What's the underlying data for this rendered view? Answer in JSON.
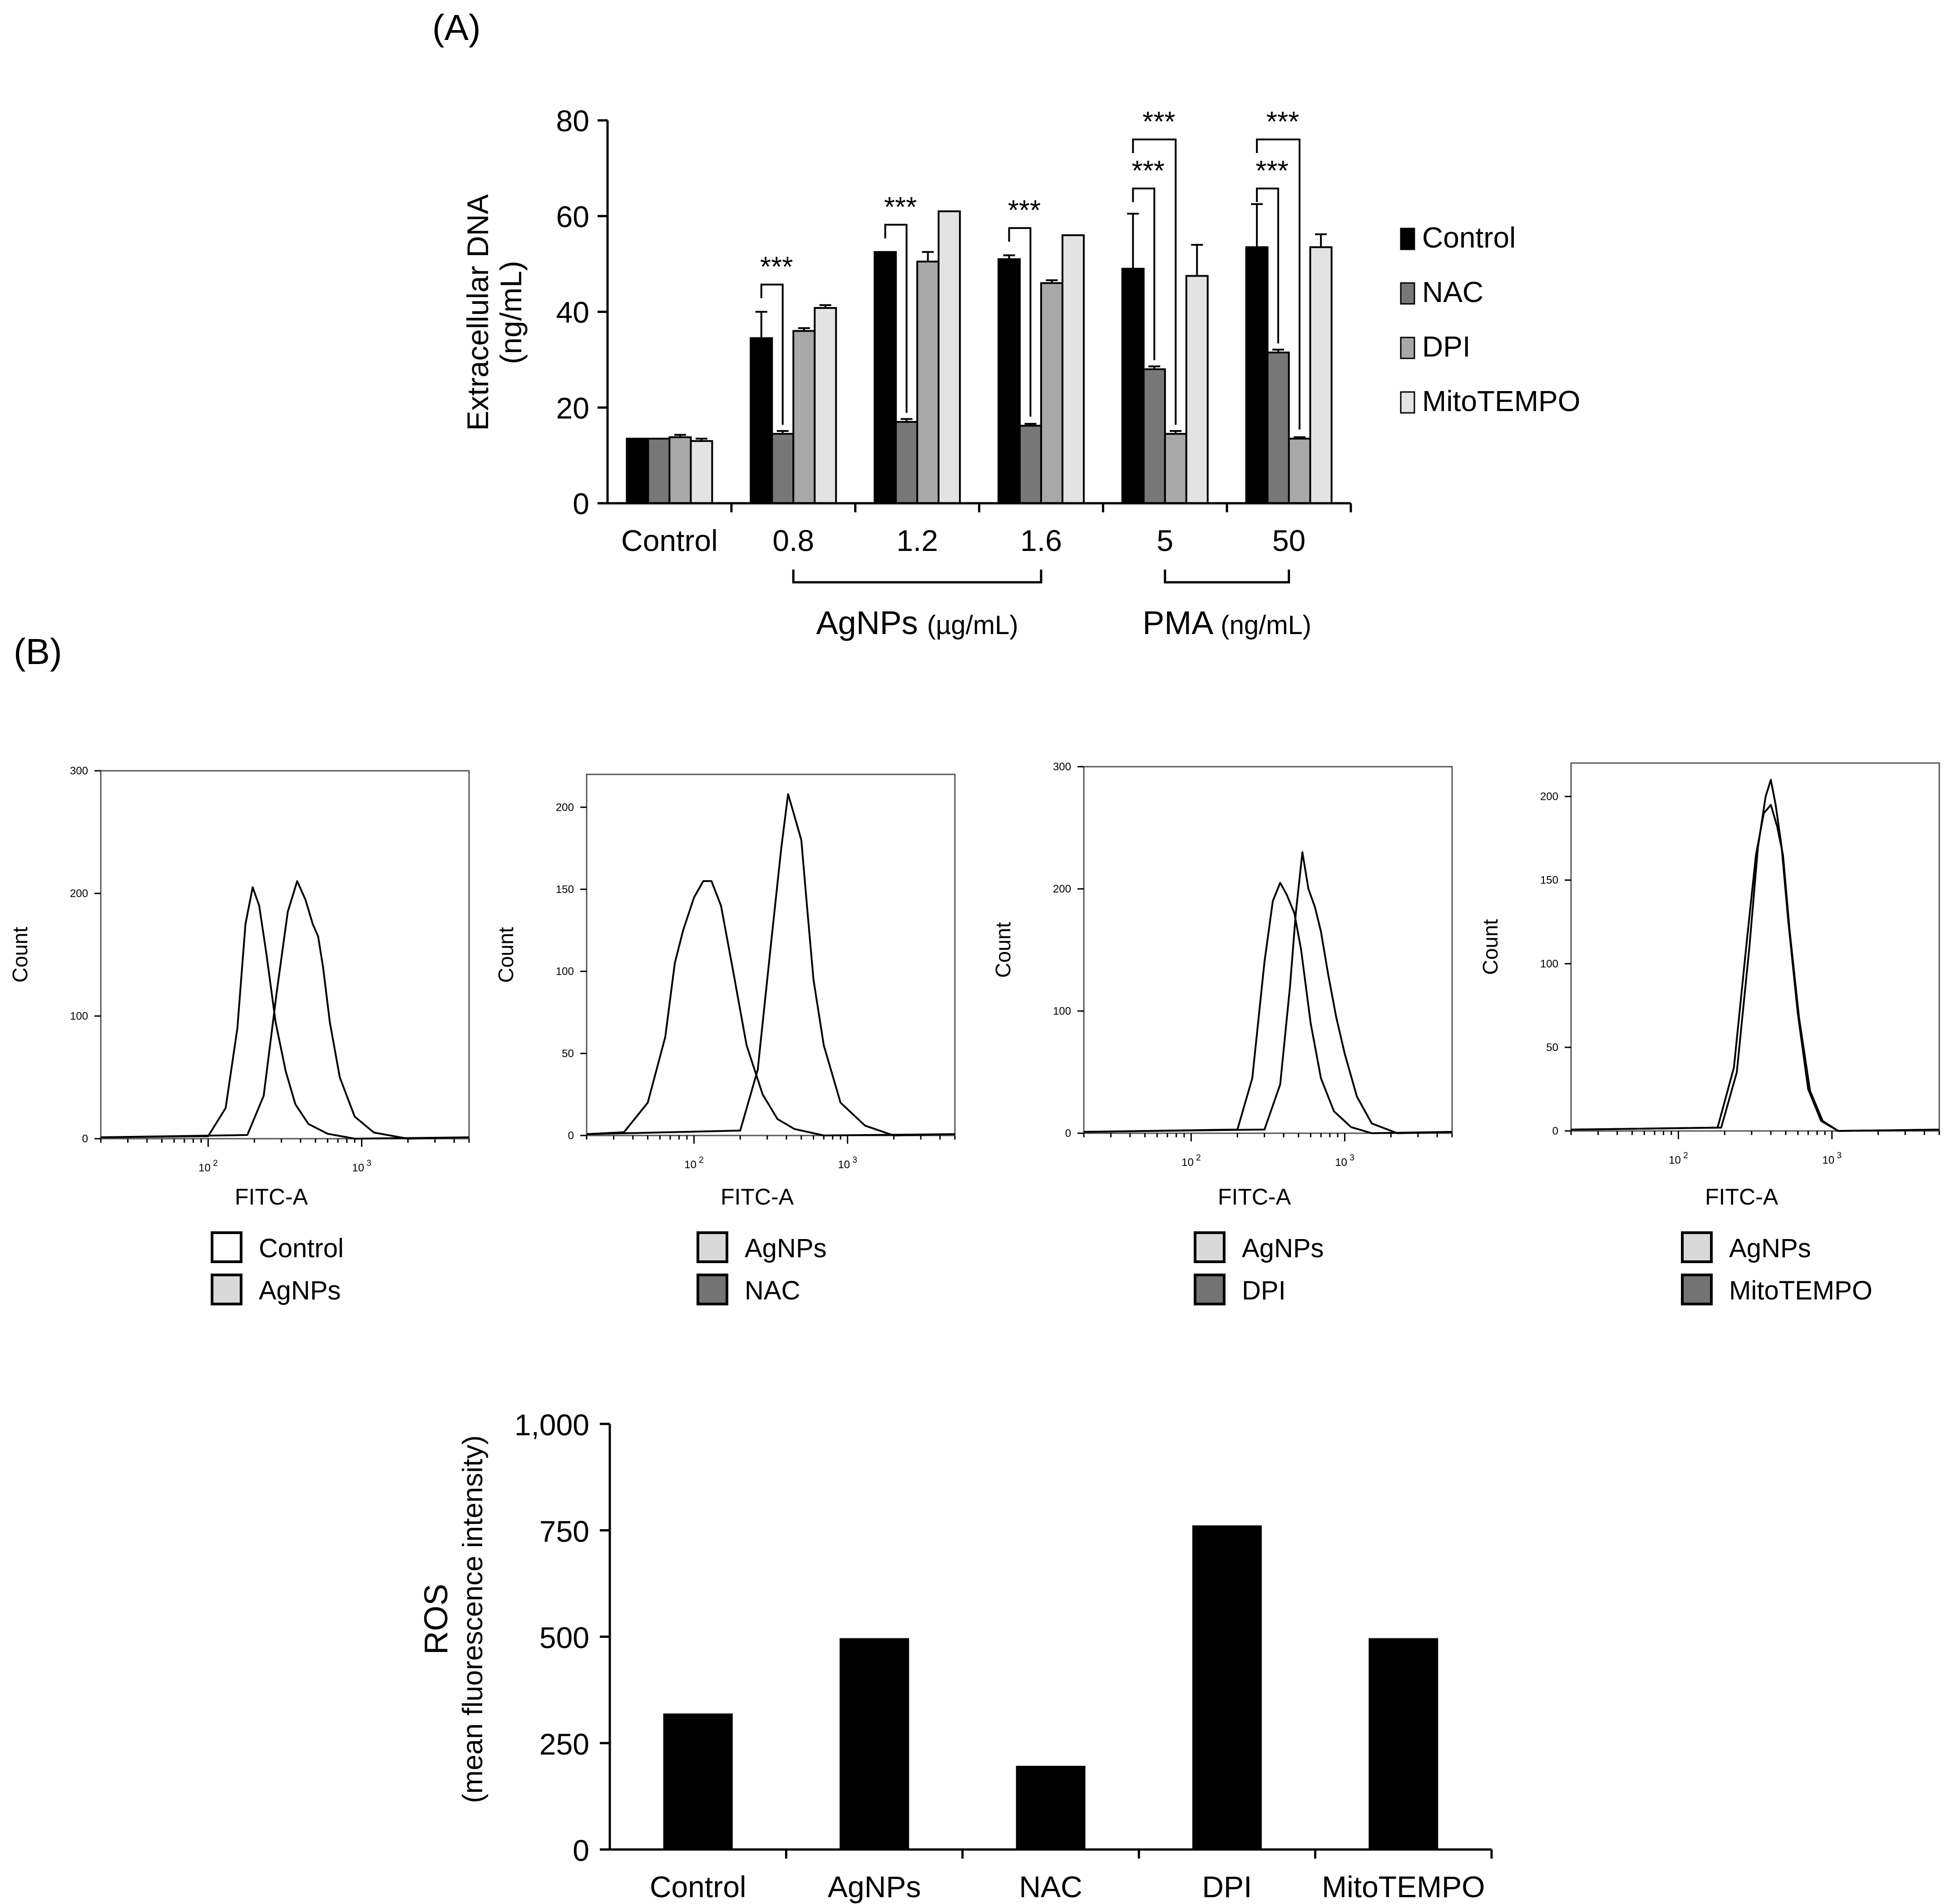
{
  "panel_labels": {
    "a": "(A)",
    "b": "(B)"
  },
  "colors": {
    "control": "#000000",
    "nac": "#777777",
    "dpi": "#a8a8a8",
    "mitotempo": "#e3e3e3",
    "legend_white": "#ffffff",
    "legend_light": "#d9d9d9",
    "legend_dark": "#737373",
    "axis": "#000000"
  },
  "chart_data": [
    {
      "id": "extracellular-dna",
      "type": "bar",
      "title": "",
      "ylabel_line1": "Extracellular DNA",
      "ylabel_line2": "(ng/mL)",
      "ylim": [
        0,
        80
      ],
      "yticks": [
        0,
        20,
        40,
        60,
        80
      ],
      "categories": [
        "Control",
        "0.8",
        "1.2",
        "1.6",
        "5",
        "50"
      ],
      "groups": [
        {
          "label": "AgNPs",
          "unit": "(µg/mL)",
          "from": 1,
          "to": 3
        },
        {
          "label": "PMA",
          "unit": "(ng/mL)",
          "from": 4,
          "to": 5
        }
      ],
      "legend": [
        "Control",
        "NAC",
        "DPI",
        "MitoTEMPO"
      ],
      "series": [
        {
          "name": "Control",
          "values": [
            13.5,
            34.5,
            52.5,
            51,
            49,
            53.5
          ],
          "errors": [
            0,
            5.5,
            0,
            0.8,
            11.5,
            9
          ]
        },
        {
          "name": "NAC",
          "values": [
            13.5,
            14.5,
            17,
            16.2,
            28,
            31.5
          ],
          "errors": [
            0,
            0.6,
            0.6,
            0.4,
            0.6,
            0.6
          ]
        },
        {
          "name": "DPI",
          "values": [
            13.8,
            36,
            50.5,
            46,
            14.5,
            13.5
          ],
          "errors": [
            0.5,
            0.6,
            2,
            0.6,
            0.6,
            0.3
          ]
        },
        {
          "name": "MitoTEMPO",
          "values": [
            13,
            40.8,
            61,
            56,
            47.5,
            53.5
          ],
          "errors": [
            0.5,
            0.6,
            0,
            0,
            6.5,
            2.7
          ]
        }
      ],
      "significance": [
        {
          "category": 1,
          "from_series": 0,
          "to_series": 1,
          "label": "***",
          "level": 0
        },
        {
          "category": 2,
          "from_series": 0,
          "to_series": 1,
          "label": "***",
          "level": 0
        },
        {
          "category": 3,
          "from_series": 0,
          "to_series": 1,
          "label": "***",
          "level": 0
        },
        {
          "category": 4,
          "from_series": 0,
          "to_series": 1,
          "label": "***",
          "level": 0
        },
        {
          "category": 4,
          "from_series": 0,
          "to_series": 2,
          "label": "***",
          "level": 1
        },
        {
          "category": 5,
          "from_series": 0,
          "to_series": 1,
          "label": "***",
          "level": 0
        },
        {
          "category": 5,
          "from_series": 0,
          "to_series": 2,
          "label": "***",
          "level": 1
        }
      ]
    },
    {
      "id": "histogram-1",
      "type": "line",
      "xlabel": "FITC-A",
      "ylabel": "Count",
      "xscale": "log",
      "xlim": [
        20,
        5000
      ],
      "ylim": [
        0,
        300
      ],
      "yticks": [
        0,
        100,
        200,
        300
      ],
      "xtick_labels": [
        "10^2",
        "10^3"
      ],
      "legend": [
        "Control",
        "AgNPs"
      ],
      "series": [
        {
          "name": "Control",
          "x": [
            100,
            130,
            155,
            175,
            195,
            215,
            240,
            275,
            320,
            370,
            450,
            600,
            900
          ],
          "y": [
            2,
            25,
            90,
            175,
            205,
            190,
            150,
            95,
            55,
            28,
            12,
            4,
            0
          ]
        },
        {
          "name": "AgNPs",
          "x": [
            180,
            230,
            280,
            330,
            380,
            430,
            480,
            520,
            560,
            620,
            720,
            900,
            1200,
            2000
          ],
          "y": [
            3,
            35,
            120,
            185,
            210,
            195,
            175,
            165,
            140,
            95,
            50,
            18,
            5,
            0
          ]
        }
      ]
    },
    {
      "id": "histogram-2",
      "type": "line",
      "xlabel": "FITC-A",
      "ylabel": "Count",
      "xscale": "log",
      "xlim": [
        20,
        5000
      ],
      "ylim": [
        0,
        220
      ],
      "yticks": [
        0,
        50,
        100,
        150,
        200
      ],
      "xtick_labels": [
        "10^2",
        "10^3"
      ],
      "legend": [
        "AgNPs",
        "NAC"
      ],
      "series": [
        {
          "name": "AgNPs",
          "x": [
            35,
            50,
            65,
            75,
            85,
            100,
            115,
            130,
            150,
            180,
            220,
            280,
            350,
            450,
            700
          ],
          "y": [
            2,
            20,
            60,
            105,
            125,
            145,
            155,
            155,
            140,
            100,
            55,
            25,
            10,
            4,
            0
          ]
        },
        {
          "name": "NAC",
          "x": [
            200,
            260,
            320,
            370,
            410,
            450,
            500,
            550,
            600,
            700,
            900,
            1300,
            2000
          ],
          "y": [
            3,
            40,
            120,
            175,
            208,
            195,
            180,
            135,
            95,
            55,
            20,
            6,
            0
          ]
        }
      ]
    },
    {
      "id": "histogram-3",
      "type": "line",
      "xlabel": "FITC-A",
      "ylabel": "Count",
      "xscale": "log",
      "xlim": [
        20,
        5000
      ],
      "ylim": [
        0,
        300
      ],
      "yticks": [
        0,
        100,
        200,
        300
      ],
      "xtick_labels": [
        "10^2",
        "10^3"
      ],
      "legend": [
        "AgNPs",
        "DPI"
      ],
      "series": [
        {
          "name": "AgNPs",
          "x": [
            200,
            250,
            300,
            340,
            380,
            420,
            470,
            520,
            600,
            700,
            850,
            1100,
            1500
          ],
          "y": [
            3,
            45,
            140,
            190,
            205,
            195,
            180,
            150,
            90,
            45,
            18,
            5,
            0
          ]
        },
        {
          "name": "DPI",
          "x": [
            300,
            380,
            440,
            480,
            530,
            580,
            640,
            700,
            780,
            880,
            1000,
            1200,
            1500,
            2200
          ],
          "y": [
            3,
            40,
            120,
            180,
            230,
            200,
            185,
            165,
            130,
            95,
            65,
            30,
            8,
            0
          ]
        }
      ]
    },
    {
      "id": "histogram-4",
      "type": "line",
      "xlabel": "FITC-A",
      "ylabel": "Count",
      "xscale": "log",
      "xlim": [
        20,
        5000
      ],
      "ylim": [
        0,
        220
      ],
      "yticks": [
        0,
        50,
        100,
        150,
        200
      ],
      "xtick_labels": [
        "10^2",
        "10^3"
      ],
      "legend": [
        "AgNPs",
        "MitoTEMPO"
      ],
      "series": [
        {
          "name": "AgNPs",
          "x": [
            190,
            240,
            290,
            330,
            370,
            400,
            430,
            470,
            520,
            600,
            700,
            850,
            1100
          ],
          "y": [
            2,
            35,
            110,
            170,
            200,
            210,
            195,
            170,
            125,
            70,
            25,
            6,
            0
          ]
        },
        {
          "name": "MitoTEMPO",
          "x": [
            180,
            230,
            280,
            320,
            360,
            400,
            440,
            480,
            530,
            610,
            720,
            870,
            1100
          ],
          "y": [
            2,
            38,
            115,
            165,
            190,
            195,
            182,
            165,
            120,
            68,
            24,
            6,
            0
          ]
        }
      ]
    },
    {
      "id": "ros",
      "type": "bar",
      "ylabel_line1": "ROS",
      "ylabel_line2": "(mean fluorescence intensity)",
      "ylim": [
        0,
        1000
      ],
      "yticks": [
        0,
        250,
        500,
        750,
        1000
      ],
      "ytick_labels": [
        "0",
        "250",
        "500",
        "750",
        "1,000"
      ],
      "categories": [
        "Control",
        "AgNPs",
        "NAC",
        "DPI",
        "MitoTEMPO"
      ],
      "values": [
        318,
        495,
        195,
        760,
        495
      ]
    }
  ]
}
